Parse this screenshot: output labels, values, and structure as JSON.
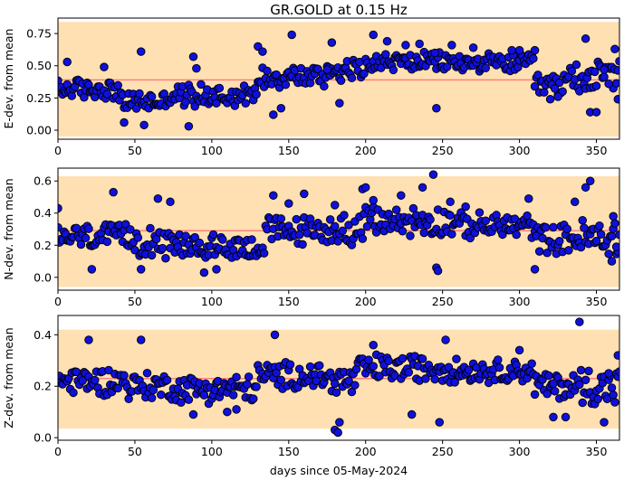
{
  "figure_title": "GR.GOLD at 0.15 Hz",
  "xlabel": "days since 05-May-2024",
  "colors": {
    "band": "#ffe0b3",
    "mean_line": "#ff7f7f",
    "marker_fill": "#1010dd",
    "marker_edge": "#000000"
  },
  "chart_data": [
    {
      "type": "scatter",
      "title": "GR.GOLD at 0.15 Hz",
      "ylabel": "E-dev. from mean",
      "xlabel": "",
      "xlim": [
        0,
        365
      ],
      "ylim": [
        -0.07,
        0.87
      ],
      "xticks": [
        0,
        50,
        100,
        150,
        200,
        250,
        300,
        350
      ],
      "yticks": [
        0.0,
        0.25,
        0.5,
        0.75
      ],
      "ytick_labels": [
        "0.00",
        "0.25",
        "0.50",
        "0.75"
      ],
      "band": [
        -0.05,
        0.84
      ],
      "mean": 0.39,
      "grid": false,
      "segments": [
        {
          "x0": 0,
          "x1": 40,
          "base": 0.32,
          "amp": 0.09
        },
        {
          "x0": 40,
          "x1": 70,
          "base": 0.22,
          "amp": 0.09
        },
        {
          "x0": 70,
          "x1": 130,
          "base": 0.27,
          "amp": 0.1
        },
        {
          "x0": 130,
          "x1": 175,
          "base": 0.42,
          "amp": 0.1
        },
        {
          "x0": 175,
          "x1": 200,
          "base": 0.47,
          "amp": 0.1
        },
        {
          "x0": 200,
          "x1": 260,
          "base": 0.53,
          "amp": 0.08
        },
        {
          "x0": 260,
          "x1": 310,
          "base": 0.52,
          "amp": 0.08
        },
        {
          "x0": 310,
          "x1": 330,
          "base": 0.35,
          "amp": 0.1
        },
        {
          "x0": 330,
          "x1": 366,
          "base": 0.42,
          "amp": 0.14
        }
      ],
      "points": [
        [
          6,
          0.53
        ],
        [
          30,
          0.49
        ],
        [
          54,
          0.61
        ],
        [
          43,
          0.06
        ],
        [
          56,
          0.04
        ],
        [
          85,
          0.03
        ],
        [
          88,
          0.57
        ],
        [
          90,
          0.48
        ],
        [
          130,
          0.65
        ],
        [
          133,
          0.61
        ],
        [
          152,
          0.74
        ],
        [
          178,
          0.68
        ],
        [
          183,
          0.21
        ],
        [
          205,
          0.74
        ],
        [
          214,
          0.69
        ],
        [
          226,
          0.66
        ],
        [
          235,
          0.67
        ],
        [
          245,
          0.6
        ],
        [
          246,
          0.17
        ],
        [
          256,
          0.66
        ],
        [
          270,
          0.64
        ],
        [
          295,
          0.62
        ],
        [
          300,
          0.62
        ],
        [
          310,
          0.62
        ],
        [
          320,
          0.24
        ],
        [
          325,
          0.26
        ],
        [
          343,
          0.71
        ],
        [
          346,
          0.14
        ],
        [
          350,
          0.14
        ],
        [
          355,
          0.47
        ],
        [
          358,
          0.36
        ],
        [
          362,
          0.63
        ],
        [
          364,
          0.24
        ],
        [
          140,
          0.12
        ],
        [
          145,
          0.17
        ],
        [
          175,
          0.47
        ]
      ]
    },
    {
      "type": "scatter",
      "title": "",
      "ylabel": "N-dev. from mean",
      "xlabel": "",
      "xlim": [
        0,
        365
      ],
      "ylim": [
        -0.08,
        0.68
      ],
      "xticks": [
        0,
        50,
        100,
        150,
        200,
        250,
        300,
        350
      ],
      "yticks": [
        0.0,
        0.2,
        0.4,
        0.6
      ],
      "ytick_labels": [
        "0.0",
        "0.2",
        "0.4",
        "0.6"
      ],
      "band": [
        -0.06,
        0.63
      ],
      "mean": 0.29,
      "grid": false,
      "segments": [
        {
          "x0": 0,
          "x1": 45,
          "base": 0.25,
          "amp": 0.09
        },
        {
          "x0": 45,
          "x1": 70,
          "base": 0.24,
          "amp": 0.12
        },
        {
          "x0": 70,
          "x1": 135,
          "base": 0.19,
          "amp": 0.09
        },
        {
          "x0": 135,
          "x1": 175,
          "base": 0.29,
          "amp": 0.1
        },
        {
          "x0": 175,
          "x1": 200,
          "base": 0.3,
          "amp": 0.11
        },
        {
          "x0": 200,
          "x1": 260,
          "base": 0.35,
          "amp": 0.11
        },
        {
          "x0": 260,
          "x1": 310,
          "base": 0.32,
          "amp": 0.09
        },
        {
          "x0": 310,
          "x1": 340,
          "base": 0.24,
          "amp": 0.1
        },
        {
          "x0": 340,
          "x1": 366,
          "base": 0.24,
          "amp": 0.14
        }
      ],
      "points": [
        [
          0,
          0.43
        ],
        [
          36,
          0.53
        ],
        [
          65,
          0.49
        ],
        [
          73,
          0.47
        ],
        [
          95,
          0.03
        ],
        [
          103,
          0.05
        ],
        [
          140,
          0.51
        ],
        [
          150,
          0.46
        ],
        [
          160,
          0.52
        ],
        [
          180,
          0.45
        ],
        [
          198,
          0.55
        ],
        [
          200,
          0.56
        ],
        [
          205,
          0.48
        ],
        [
          223,
          0.51
        ],
        [
          237,
          0.56
        ],
        [
          244,
          0.64
        ],
        [
          246,
          0.06
        ],
        [
          247,
          0.04
        ],
        [
          255,
          0.47
        ],
        [
          265,
          0.44
        ],
        [
          306,
          0.49
        ],
        [
          336,
          0.47
        ],
        [
          343,
          0.56
        ],
        [
          346,
          0.6
        ],
        [
          360,
          0.1
        ],
        [
          361,
          0.38
        ],
        [
          363,
          0.19
        ],
        [
          22,
          0.05
        ],
        [
          54,
          0.05
        ],
        [
          310,
          0.05
        ]
      ]
    },
    {
      "type": "scatter",
      "title": "",
      "ylabel": "Z-dev. from mean",
      "xlabel": "days since 05-May-2024",
      "xlim": [
        0,
        365
      ],
      "ylim": [
        -0.01,
        0.475
      ],
      "xticks": [
        0,
        50,
        100,
        150,
        200,
        250,
        300,
        350
      ],
      "yticks": [
        0.0,
        0.2,
        0.4
      ],
      "ytick_labels": [
        "0.0",
        "0.2",
        "0.4"
      ],
      "band": [
        0.035,
        0.42
      ],
      "mean": 0.23,
      "grid": false,
      "segments": [
        {
          "x0": 0,
          "x1": 45,
          "base": 0.22,
          "amp": 0.06
        },
        {
          "x0": 45,
          "x1": 75,
          "base": 0.2,
          "amp": 0.06
        },
        {
          "x0": 75,
          "x1": 130,
          "base": 0.19,
          "amp": 0.06
        },
        {
          "x0": 130,
          "x1": 175,
          "base": 0.24,
          "amp": 0.06
        },
        {
          "x0": 175,
          "x1": 195,
          "base": 0.22,
          "amp": 0.07
        },
        {
          "x0": 195,
          "x1": 260,
          "base": 0.27,
          "amp": 0.06
        },
        {
          "x0": 260,
          "x1": 310,
          "base": 0.26,
          "amp": 0.05
        },
        {
          "x0": 310,
          "x1": 340,
          "base": 0.2,
          "amp": 0.06
        },
        {
          "x0": 340,
          "x1": 366,
          "base": 0.2,
          "amp": 0.09
        }
      ],
      "points": [
        [
          20,
          0.38
        ],
        [
          54,
          0.38
        ],
        [
          141,
          0.4
        ],
        [
          180,
          0.03
        ],
        [
          182,
          0.02
        ],
        [
          183,
          0.06
        ],
        [
          205,
          0.36
        ],
        [
          248,
          0.06
        ],
        [
          252,
          0.38
        ],
        [
          300,
          0.34
        ],
        [
          322,
          0.08
        ],
        [
          330,
          0.08
        ],
        [
          339,
          0.45
        ],
        [
          355,
          0.06
        ],
        [
          358,
          0.25
        ],
        [
          364,
          0.32
        ],
        [
          88,
          0.09
        ],
        [
          110,
          0.1
        ],
        [
          116,
          0.11
        ],
        [
          230,
          0.09
        ]
      ]
    }
  ]
}
